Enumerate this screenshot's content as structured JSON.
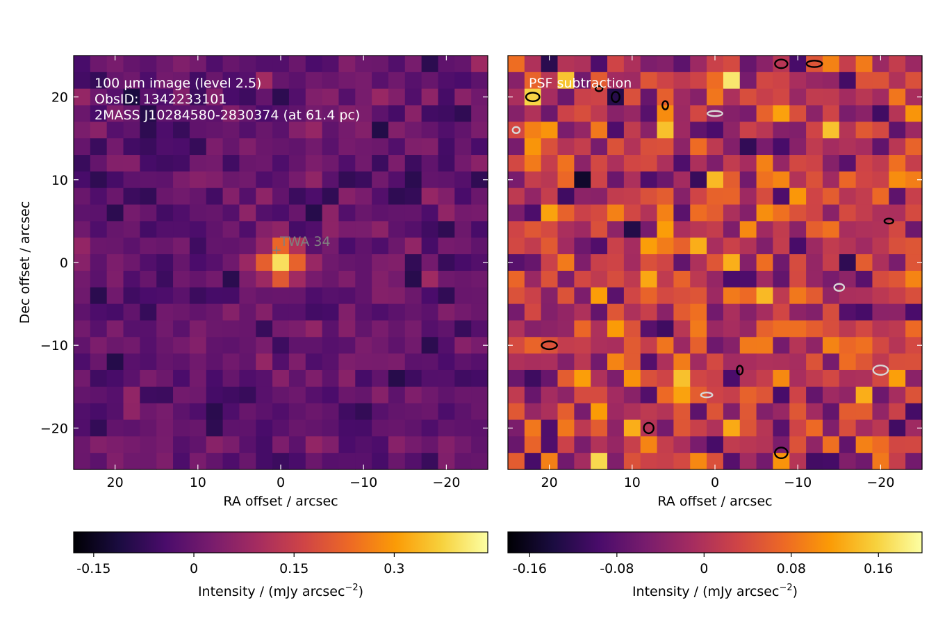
{
  "colormap": {
    "name": "inferno",
    "stops": [
      "#000004",
      "#1b0c41",
      "#4a0c6b",
      "#781c6d",
      "#a52c60",
      "#cf4446",
      "#ed6925",
      "#fb9b06",
      "#f7d13d",
      "#fcffa4"
    ]
  },
  "chart_data": [
    {
      "type": "heatmap",
      "title": "",
      "annotations": [
        "100 µm image (level 2.5)",
        "ObsID: 1342233101",
        "2MASS J10284580-2830374 (at 61.4 pc)"
      ],
      "xlabel": "RA offset / arcsec",
      "ylabel": "Dec offset / arcsec",
      "xlim": [
        25,
        -25
      ],
      "ylim": [
        -25,
        25
      ],
      "xticks": [
        20,
        10,
        0,
        -10,
        -20
      ],
      "yticks": [
        20,
        10,
        0,
        -10,
        -20
      ],
      "grid": false,
      "pixel_grid": [
        25,
        25
      ],
      "pixel_size_arcsec": 2.0,
      "source": {
        "label": "TWA 34",
        "ra": 0.5,
        "dec": 1.5,
        "color": "#808080"
      },
      "peak": {
        "ra": 0,
        "dec": 0,
        "value": 0.42
      },
      "colorbar": {
        "label": "Intensity / (mJy arcsec",
        "label_exponent": "−2",
        "label_tail": ")",
        "ticks": [
          -0.15,
          0,
          0.15,
          0.3
        ],
        "tick_labels": [
          "-0.15",
          "0",
          "0.15",
          "0.3"
        ],
        "range": [
          -0.18,
          0.44
        ]
      }
    },
    {
      "type": "heatmap",
      "title": "",
      "annotations": [
        "PSF subtraction"
      ],
      "xlabel": "RA offset / arcsec",
      "ylabel": "",
      "xlim": [
        25,
        -25
      ],
      "ylim": [
        -25,
        25
      ],
      "xticks": [
        20,
        10,
        0,
        -10,
        -20
      ],
      "yticks": [
        20,
        10,
        0,
        -10,
        -20
      ],
      "grid": false,
      "pixel_grid": [
        25,
        25
      ],
      "pixel_size_arcsec": 2.0,
      "contours": [
        {
          "color": "#000000",
          "level": "positive",
          "points": [
            [
              14,
              21
            ],
            [
              22,
              20
            ]
          ]
        },
        {
          "color": "#000000",
          "level": "positive",
          "points": [
            [
              -8,
              24
            ],
            [
              -12,
              24
            ]
          ]
        },
        {
          "color": "#000000",
          "level": "positive",
          "points": [
            [
              6,
              19
            ],
            [
              12,
              20
            ]
          ]
        },
        {
          "color": "#000000",
          "level": "positive",
          "points": [
            [
              20,
              -10
            ],
            [
              -3,
              -13
            ],
            [
              -8,
              -23
            ],
            [
              8,
              -20
            ],
            [
              -21,
              5
            ]
          ]
        },
        {
          "color": "#d8d8d8",
          "level": "negative",
          "points": [
            [
              1,
              -16
            ],
            [
              -15,
              -3
            ],
            [
              -20,
              -13
            ],
            [
              0,
              18
            ],
            [
              24,
              16
            ]
          ]
        }
      ],
      "colorbar": {
        "label": "Intensity / (mJy arcsec",
        "label_exponent": "−2",
        "label_tail": ")",
        "ticks": [
          -0.16,
          -0.08,
          0,
          0.08,
          0.16
        ],
        "tick_labels": [
          "-0.16",
          "-0.08",
          "0",
          "0.08",
          "0.16"
        ],
        "range": [
          -0.18,
          0.2
        ]
      }
    }
  ]
}
